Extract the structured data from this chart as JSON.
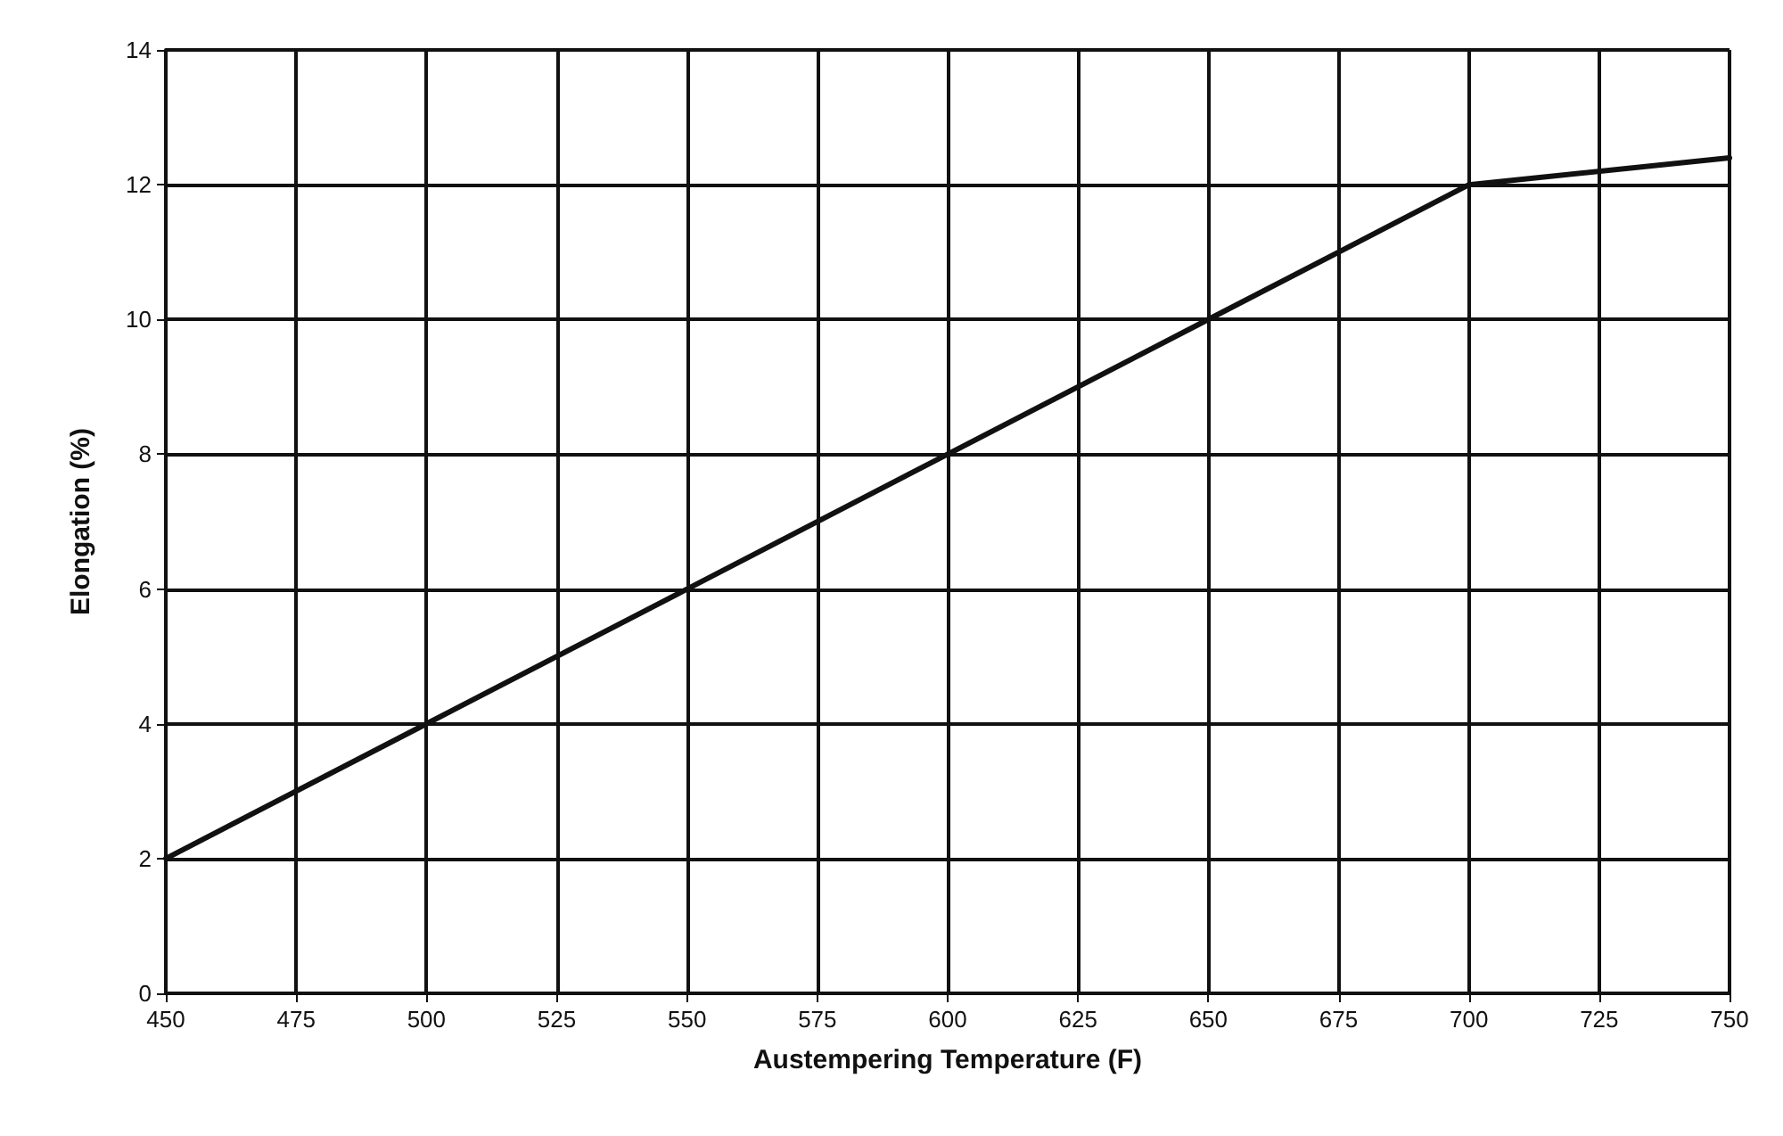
{
  "chart_data": {
    "type": "line",
    "xlabel": "Austempering Temperature (F)",
    "ylabel": "Elongation (%)",
    "x": [
      450,
      500,
      550,
      600,
      650,
      700,
      750
    ],
    "series": [
      {
        "color": "#111111",
        "values": [
          2,
          4,
          6,
          8,
          10,
          12,
          12.4
        ]
      }
    ],
    "xlim": [
      450,
      750
    ],
    "xticks": [
      450,
      475,
      500,
      525,
      550,
      575,
      600,
      625,
      650,
      675,
      700,
      725,
      750
    ],
    "ylim": [
      0,
      14
    ],
    "yticks": [
      0,
      2,
      4,
      6,
      8,
      10,
      12,
      14
    ],
    "grid": true,
    "marker": "none",
    "line_style": "solid"
  }
}
